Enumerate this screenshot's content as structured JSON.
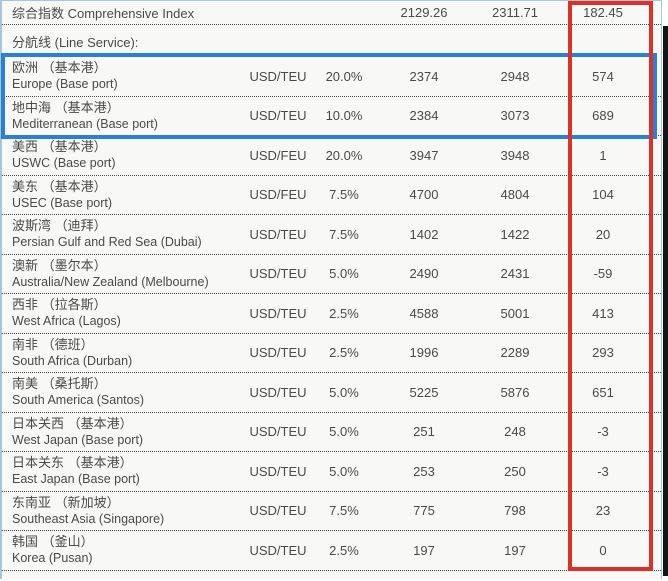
{
  "colors": {
    "highlight_blue": "#2a80d6",
    "highlight_red": "#dc3126",
    "table_border_blue": "#a6c6dd",
    "row_background": "#f8f8f7",
    "text": "#4a4a4a"
  },
  "table": {
    "comprehensive": {
      "label": "综合指数 Comprehensive Index",
      "previous": "2129.26",
      "current": "2311.71",
      "change": "182.45"
    },
    "section_label": "分航线 (Line Service):",
    "rows": [
      {
        "name_cn": "欧洲 （基本港）",
        "name_en": "Europe (Base port)",
        "unit": "USD/TEU",
        "weight": "20.0%",
        "previous": "2374",
        "current": "2948",
        "change": "574"
      },
      {
        "name_cn": "地中海 （基本港）",
        "name_en": "Mediterranean (Base port)",
        "unit": "USD/TEU",
        "weight": "10.0%",
        "previous": "2384",
        "current": "3073",
        "change": "689"
      },
      {
        "name_cn": "美西 （基本港）",
        "name_en": "USWC (Base port)",
        "unit": "USD/FEU",
        "weight": "20.0%",
        "previous": "3947",
        "current": "3948",
        "change": "1"
      },
      {
        "name_cn": "美东 （基本港）",
        "name_en": "USEC (Base port)",
        "unit": "USD/FEU",
        "weight": "7.5%",
        "previous": "4700",
        "current": "4804",
        "change": "104"
      },
      {
        "name_cn": "波斯湾 （迪拜）",
        "name_en": "Persian Gulf and Red Sea (Dubai)",
        "unit": "USD/TEU",
        "weight": "7.5%",
        "previous": "1402",
        "current": "1422",
        "change": "20"
      },
      {
        "name_cn": "澳新 （墨尔本）",
        "name_en": "Australia/New Zealand (Melbourne)",
        "unit": "USD/TEU",
        "weight": "5.0%",
        "previous": "2490",
        "current": "2431",
        "change": "-59"
      },
      {
        "name_cn": "西非 （拉各斯）",
        "name_en": "West Africa (Lagos)",
        "unit": "USD/TEU",
        "weight": "2.5%",
        "previous": "4588",
        "current": "5001",
        "change": "413"
      },
      {
        "name_cn": "南非 （德班）",
        "name_en": "South Africa (Durban)",
        "unit": "USD/TEU",
        "weight": "2.5%",
        "previous": "1996",
        "current": "2289",
        "change": "293"
      },
      {
        "name_cn": "南美 （桑托斯）",
        "name_en": "South America (Santos)",
        "unit": "USD/TEU",
        "weight": "5.0%",
        "previous": "5225",
        "current": "5876",
        "change": "651"
      },
      {
        "name_cn": "日本关西 （基本港）",
        "name_en": "West Japan (Base port)",
        "unit": "USD/TEU",
        "weight": "5.0%",
        "previous": "251",
        "current": "248",
        "change": "-3"
      },
      {
        "name_cn": "日本关东 （基本港）",
        "name_en": "East Japan (Base port)",
        "unit": "USD/TEU",
        "weight": "5.0%",
        "previous": "253",
        "current": "250",
        "change": "-3"
      },
      {
        "name_cn": "东南亚 （新加坡）",
        "name_en": "Southeast Asia (Singapore)",
        "unit": "USD/TEU",
        "weight": "7.5%",
        "previous": "775",
        "current": "798",
        "change": "23"
      },
      {
        "name_cn": "韩国 （釜山）",
        "name_en": "Korea (Pusan)",
        "unit": "USD/TEU",
        "weight": "2.5%",
        "previous": "197",
        "current": "197",
        "change": "0"
      }
    ]
  },
  "annotations": {
    "blue_box_purpose": "highlights Europe and Mediterranean rows",
    "red_box_purpose": "highlights weekly change column"
  }
}
